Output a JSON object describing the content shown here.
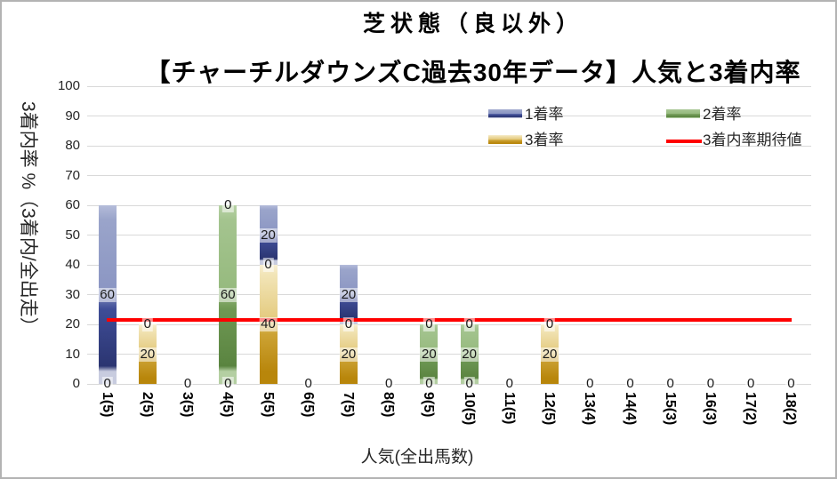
{
  "title": {
    "line1": "芝状態（良以外）",
    "line2": "【チャーチルダウンズC過去30年データ】人気と3着内率"
  },
  "y_axis": {
    "title": "3着内率 %（3着内/全出走）",
    "min": 0,
    "max": 100,
    "step": 10,
    "tick_labels": [
      "0",
      "10",
      "20",
      "30",
      "40",
      "50",
      "60",
      "70",
      "80",
      "90",
      "100"
    ]
  },
  "x_axis": {
    "title": "人気(全出馬数)"
  },
  "legend": {
    "items": [
      {
        "label": "1着率",
        "series_key": "win1",
        "type": "box"
      },
      {
        "label": "2着率",
        "series_key": "win2",
        "type": "box"
      },
      {
        "label": "3着率",
        "series_key": "win3",
        "type": "box"
      },
      {
        "label": "3着内率期待値",
        "series_key": "expected",
        "type": "line"
      }
    ]
  },
  "colors": {
    "win1": {
      "edge_top": "#b4bcda",
      "light": "#9aa4ca",
      "mid": "#8b96c3",
      "dark": "#3f4d97",
      "darker": "#2b3571",
      "edge_bottom": "#c8ccdf"
    },
    "win2": {
      "edge_top": "#b8d2a6",
      "light": "#a4c48f",
      "mid": "#96ba7e",
      "dark": "#6f9854",
      "darker": "#5a8440",
      "edge_bottom": "#b4cfa2"
    },
    "win3": {
      "edge_top": "#f8efd3",
      "light": "#f2e5b8",
      "mid": "#e3c97b",
      "dark": "#cda335",
      "darker": "#b8860b",
      "edge_bottom": null
    },
    "expected_line": "#ff0000",
    "gridline": "#d9d9d9"
  },
  "chart_data": {
    "type": "bar",
    "stacked": true,
    "title": "芝状態（良以外）【チャーチルダウンズC過去30年データ】人気と3着内率",
    "xlabel": "人気(全出馬数)",
    "ylabel": "3着内率 %（3着内/全出走）",
    "ylim": [
      0,
      100
    ],
    "grid": true,
    "legend_position": "top-right",
    "categories": [
      "1(5)",
      "2(5)",
      "3(5)",
      "4(5)",
      "5(5)",
      "6(5)",
      "7(5)",
      "8(5)",
      "9(5)",
      "10(5)",
      "11(5)",
      "12(5)",
      "13(4)",
      "14(4)",
      "15(3)",
      "16(3)",
      "17(2)",
      "18(2)"
    ],
    "stack_order_bottom_to_top": [
      "win3",
      "win2",
      "win1"
    ],
    "series": [
      {
        "name": "1着率",
        "key": "win1",
        "values": [
          60,
          0,
          0,
          0,
          20,
          0,
          20,
          0,
          0,
          0,
          0,
          0,
          0,
          0,
          0,
          0,
          0,
          0
        ]
      },
      {
        "name": "2着率",
        "key": "win2",
        "values": [
          0,
          0,
          0,
          60,
          0,
          0,
          0,
          0,
          20,
          20,
          0,
          0,
          0,
          0,
          0,
          0,
          0,
          0
        ]
      },
      {
        "name": "3着率",
        "key": "win3",
        "values": [
          0,
          20,
          0,
          0,
          40,
          0,
          20,
          0,
          0,
          0,
          0,
          20,
          0,
          0,
          0,
          0,
          0,
          0
        ]
      }
    ],
    "expected_line": {
      "name": "3着内率期待値",
      "value": 21.5
    }
  }
}
